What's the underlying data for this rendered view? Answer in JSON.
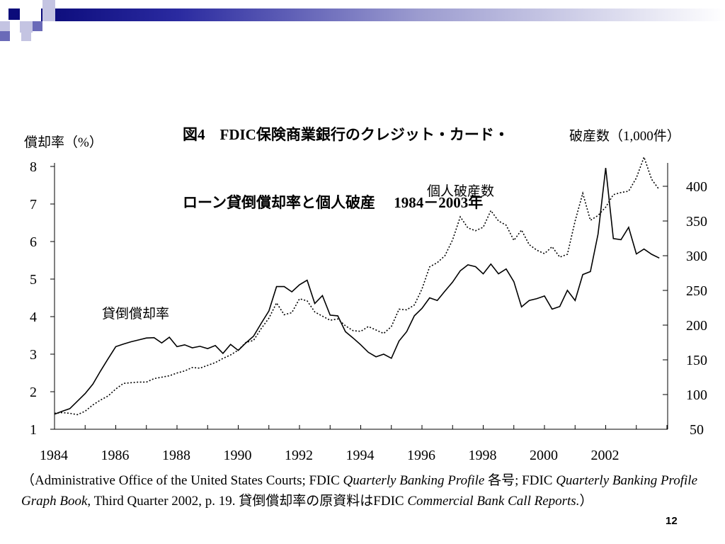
{
  "title": {
    "line1": "図4　FDIC保険商業銀行のクレジット・カード・",
    "line2": "ローン貸倒償却率と個人破産　 1984－2003年"
  },
  "left_axis_caption": "償却率（%）",
  "right_axis_caption": "破産数（1,000件）",
  "series_labels": {
    "bankruptcies": "個人破産数",
    "chargeoff": "貸倒償却率"
  },
  "source": {
    "part1": "（Administrative Office of the United States Courts; FDIC ",
    "part2": "Quarterly Banking Profile",
    "part3": " 各号; FDIC ",
    "part4": "Quarterly Banking Profile Graph Book",
    "part5": ", Third Quarter 2002, p. 19. 貸倒償却率の原資料はFDIC ",
    "part6": "Commercial Bank Call Reports.",
    "part7": "）"
  },
  "page_number": "12",
  "colors": {
    "deco_dark": "#0b0b7a",
    "deco_mid": "#6a6ab8",
    "deco_light": "#c4c4e2",
    "line": "#000000"
  },
  "chart_data": {
    "type": "line",
    "x_ticks": [
      "1984",
      "1986",
      "1988",
      "1990",
      "1992",
      "1994",
      "1996",
      "1998",
      "2000",
      "2002"
    ],
    "x_range": [
      1984.0,
      2004.0
    ],
    "y_left": {
      "ticks": [
        1,
        2,
        3,
        4,
        5,
        6,
        7,
        8
      ],
      "range": [
        1,
        8
      ]
    },
    "y_right": {
      "ticks": [
        50,
        100,
        150,
        200,
        250,
        300,
        350,
        400
      ],
      "range": [
        50,
        430
      ]
    },
    "grid": false,
    "series": [
      {
        "name": "貸倒償却率",
        "axis": "left",
        "style": "solid",
        "points": [
          [
            1984.0,
            1.4
          ],
          [
            1984.25,
            1.48
          ],
          [
            1984.5,
            1.55
          ],
          [
            1984.75,
            1.75
          ],
          [
            1985.0,
            1.95
          ],
          [
            1985.25,
            2.2
          ],
          [
            1985.5,
            2.55
          ],
          [
            1985.75,
            2.88
          ],
          [
            1986.0,
            3.2
          ],
          [
            1986.25,
            3.27
          ],
          [
            1986.5,
            3.33
          ],
          [
            1986.75,
            3.38
          ],
          [
            1987.0,
            3.43
          ],
          [
            1987.25,
            3.44
          ],
          [
            1987.5,
            3.3
          ],
          [
            1987.75,
            3.45
          ],
          [
            1988.0,
            3.2
          ],
          [
            1988.25,
            3.25
          ],
          [
            1988.5,
            3.17
          ],
          [
            1988.75,
            3.21
          ],
          [
            1989.0,
            3.15
          ],
          [
            1989.25,
            3.23
          ],
          [
            1989.5,
            3.02
          ],
          [
            1989.75,
            3.26
          ],
          [
            1990.0,
            3.1
          ],
          [
            1990.25,
            3.3
          ],
          [
            1990.5,
            3.48
          ],
          [
            1990.75,
            3.82
          ],
          [
            1991.0,
            4.15
          ],
          [
            1991.25,
            4.8
          ],
          [
            1991.5,
            4.8
          ],
          [
            1991.75,
            4.66
          ],
          [
            1992.0,
            4.85
          ],
          [
            1992.25,
            4.97
          ],
          [
            1992.5,
            4.35
          ],
          [
            1992.75,
            4.56
          ],
          [
            1993.0,
            4.04
          ],
          [
            1993.25,
            4.02
          ],
          [
            1993.5,
            3.6
          ],
          [
            1993.75,
            3.43
          ],
          [
            1994.0,
            3.25
          ],
          [
            1994.25,
            3.05
          ],
          [
            1994.5,
            2.93
          ],
          [
            1994.75,
            3.0
          ],
          [
            1995.0,
            2.89
          ],
          [
            1995.25,
            3.35
          ],
          [
            1995.5,
            3.6
          ],
          [
            1995.75,
            4.02
          ],
          [
            1996.0,
            4.22
          ],
          [
            1996.25,
            4.5
          ],
          [
            1996.5,
            4.43
          ],
          [
            1996.75,
            4.68
          ],
          [
            1997.0,
            4.92
          ],
          [
            1997.25,
            5.22
          ],
          [
            1997.5,
            5.38
          ],
          [
            1997.75,
            5.33
          ],
          [
            1998.0,
            5.14
          ],
          [
            1998.25,
            5.4
          ],
          [
            1998.5,
            5.14
          ],
          [
            1998.75,
            5.27
          ],
          [
            1999.0,
            4.93
          ],
          [
            1999.25,
            4.26
          ],
          [
            1999.5,
            4.43
          ],
          [
            1999.75,
            4.48
          ],
          [
            2000.0,
            4.55
          ],
          [
            2000.25,
            4.2
          ],
          [
            2000.5,
            4.27
          ],
          [
            2000.75,
            4.7
          ],
          [
            2001.0,
            4.43
          ],
          [
            2001.25,
            5.12
          ],
          [
            2001.5,
            5.2
          ],
          [
            2001.75,
            6.2
          ],
          [
            2002.0,
            7.96
          ],
          [
            2002.25,
            6.08
          ],
          [
            2002.5,
            6.05
          ],
          [
            2002.75,
            6.38
          ],
          [
            2003.0,
            5.67
          ],
          [
            2003.25,
            5.8
          ],
          [
            2003.5,
            5.66
          ],
          [
            2003.75,
            5.56
          ]
        ]
      },
      {
        "name": "個人破産数",
        "axis": "right",
        "style": "dotted",
        "points": [
          [
            1984.0,
            73
          ],
          [
            1984.25,
            74
          ],
          [
            1984.5,
            73
          ],
          [
            1984.75,
            71
          ],
          [
            1985.0,
            76
          ],
          [
            1985.25,
            85
          ],
          [
            1985.5,
            92
          ],
          [
            1985.75,
            98
          ],
          [
            1986.0,
            108
          ],
          [
            1986.25,
            116
          ],
          [
            1986.5,
            117
          ],
          [
            1986.75,
            118
          ],
          [
            1987.0,
            118
          ],
          [
            1987.25,
            123
          ],
          [
            1987.5,
            125
          ],
          [
            1987.75,
            127
          ],
          [
            1988.0,
            131
          ],
          [
            1988.25,
            134
          ],
          [
            1988.5,
            139
          ],
          [
            1988.75,
            138
          ],
          [
            1989.0,
            142
          ],
          [
            1989.25,
            146
          ],
          [
            1989.5,
            152
          ],
          [
            1989.75,
            157
          ],
          [
            1990.0,
            164
          ],
          [
            1990.25,
            175
          ],
          [
            1990.5,
            178
          ],
          [
            1990.75,
            195
          ],
          [
            1991.0,
            210
          ],
          [
            1991.25,
            232
          ],
          [
            1991.5,
            215
          ],
          [
            1991.75,
            218
          ],
          [
            1992.0,
            238
          ],
          [
            1992.25,
            235
          ],
          [
            1992.5,
            219
          ],
          [
            1992.75,
            213
          ],
          [
            1993.0,
            207
          ],
          [
            1993.25,
            209
          ],
          [
            1993.5,
            199
          ],
          [
            1993.75,
            192
          ],
          [
            1994.0,
            191
          ],
          [
            1994.25,
            198
          ],
          [
            1994.5,
            193
          ],
          [
            1994.75,
            188
          ],
          [
            1995.0,
            198
          ],
          [
            1995.25,
            223
          ],
          [
            1995.5,
            222
          ],
          [
            1995.75,
            229
          ],
          [
            1996.0,
            252
          ],
          [
            1996.25,
            284
          ],
          [
            1996.5,
            290
          ],
          [
            1996.75,
            300
          ],
          [
            1997.0,
            323
          ],
          [
            1997.25,
            356
          ],
          [
            1997.5,
            340
          ],
          [
            1997.75,
            336
          ],
          [
            1998.0,
            341
          ],
          [
            1998.25,
            365
          ],
          [
            1998.5,
            350
          ],
          [
            1998.75,
            344
          ],
          [
            1999.0,
            322
          ],
          [
            1999.25,
            337
          ],
          [
            1999.5,
            316
          ],
          [
            1999.75,
            308
          ],
          [
            2000.0,
            303
          ],
          [
            2000.25,
            313
          ],
          [
            2000.5,
            298
          ],
          [
            2000.75,
            302
          ],
          [
            2001.0,
            350
          ],
          [
            2001.25,
            390
          ],
          [
            2001.5,
            351
          ],
          [
            2001.75,
            358
          ],
          [
            2002.0,
            370
          ],
          [
            2002.25,
            388
          ],
          [
            2002.5,
            391
          ],
          [
            2002.75,
            393
          ],
          [
            2003.0,
            412
          ],
          [
            2003.25,
            442
          ],
          [
            2003.5,
            410
          ],
          [
            2003.75,
            395
          ]
        ]
      }
    ]
  }
}
